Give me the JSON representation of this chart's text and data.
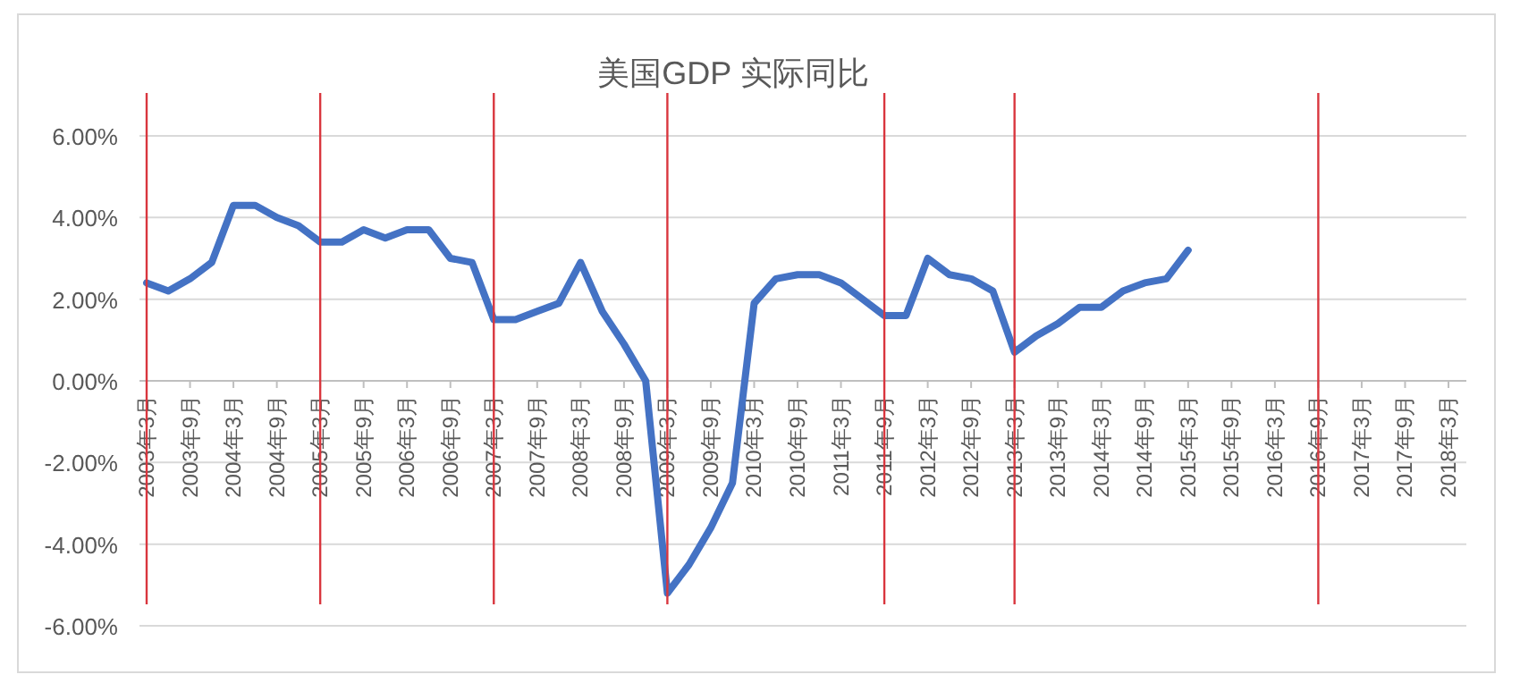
{
  "chart_data": {
    "type": "line",
    "title": "美国GDP 实际同比",
    "categories": [
      "2003年3月",
      null,
      "2003年9月",
      null,
      "2004年3月",
      null,
      "2004年9月",
      null,
      "2005年3月",
      null,
      "2005年9月",
      null,
      "2006年3月",
      null,
      "2006年9月",
      null,
      "2007年3月",
      null,
      "2007年9月",
      null,
      "2008年3月",
      null,
      "2008年9月",
      null,
      "2009年3月",
      null,
      "2009年9月",
      null,
      "2010年3月",
      null,
      "2010年9月",
      null,
      "2011年3月",
      null,
      "2011年9月",
      null,
      "2012年3月",
      null,
      "2012年9月",
      null,
      "2013年3月",
      null,
      "2013年9月",
      null,
      "2014年3月",
      null,
      "2014年9月",
      null,
      "2015年3月",
      null,
      "2015年9月",
      null,
      "2016年3月",
      null,
      "2016年9月",
      null,
      "2017年3月",
      null,
      "2017年9月",
      null,
      "2018年3月"
    ],
    "series": [
      {
        "color": "#4472c4",
        "values": [
          2.4,
          2.2,
          2.5,
          2.9,
          4.3,
          4.3,
          4.0,
          3.8,
          3.4,
          3.4,
          3.7,
          3.5,
          3.7,
          3.7,
          3.0,
          2.9,
          1.5,
          1.5,
          1.7,
          1.9,
          2.9,
          1.7,
          0.9,
          0.0,
          -5.2,
          -4.5,
          -3.6,
          -2.5,
          1.9,
          2.5,
          2.6,
          2.6,
          2.4,
          2.0,
          1.6,
          1.6,
          3.0,
          2.6,
          2.5,
          2.2,
          0.7,
          1.1,
          1.4,
          1.8,
          1.8,
          2.2,
          2.4,
          2.5,
          3.2,
          null,
          null,
          null,
          null,
          null,
          null,
          null,
          null,
          null,
          null,
          null,
          null
        ]
      }
    ],
    "ylim": [
      -6,
      6
    ],
    "yticks": [
      {
        "value": -6,
        "label": "-6.00%"
      },
      {
        "value": -4,
        "label": "-4.00%"
      },
      {
        "value": -2,
        "label": "-2.00%"
      },
      {
        "value": 0,
        "label": "0.00%"
      },
      {
        "value": 2,
        "label": "2.00%"
      },
      {
        "value": 4,
        "label": "4.00%"
      },
      {
        "value": 6,
        "label": "6.00%"
      }
    ],
    "grid": "y",
    "marker": "none",
    "line_style": "solid",
    "ref_lines": [
      {
        "axis": "x",
        "value": "2003年3月",
        "color": "#d9363e"
      },
      {
        "axis": "x",
        "value": "2005年3月",
        "color": "#d9363e"
      },
      {
        "axis": "x",
        "value": "2007年3月",
        "color": "#d9363e"
      },
      {
        "axis": "x",
        "value": "2009年3月",
        "color": "#d9363e"
      },
      {
        "axis": "x",
        "value": "2011年9月",
        "color": "#d9363e"
      },
      {
        "axis": "x",
        "value": "2013年3月",
        "color": "#d9363e"
      },
      {
        "axis": "x",
        "value": "2016年9月",
        "color": "#d9363e"
      }
    ]
  }
}
